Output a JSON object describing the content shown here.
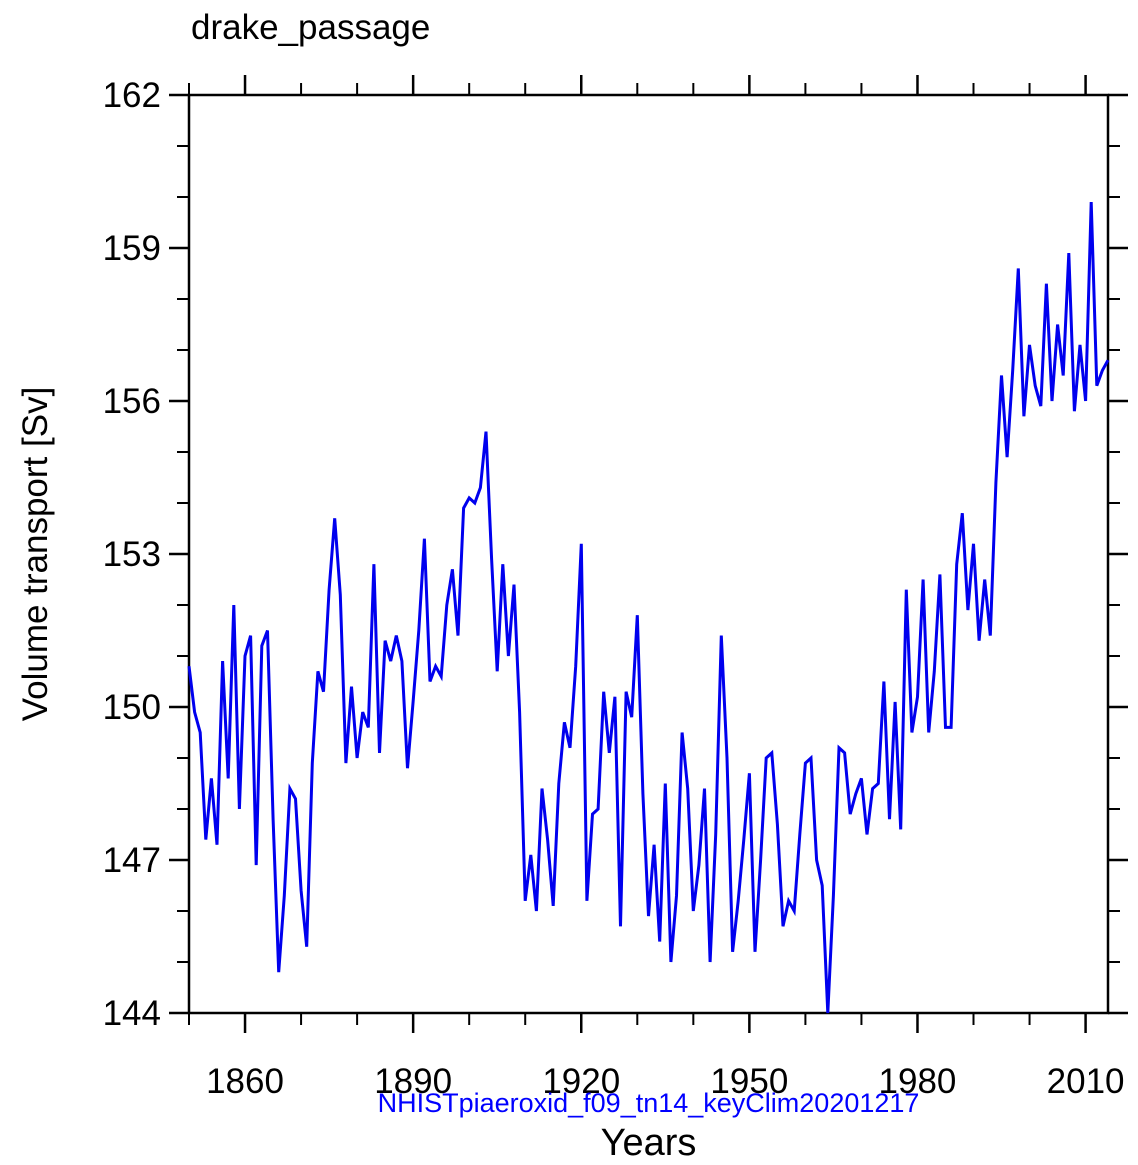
{
  "chart_data": {
    "type": "line",
    "title": "drake_passage",
    "subtitle": "NHISTpiaeroxid_f09_tn14_keyClim20201217",
    "xlabel": "Years",
    "ylabel": "Volume transport [Sv]",
    "xlim": [
      1850,
      2014
    ],
    "ylim": [
      144,
      162
    ],
    "x_start": 1850,
    "x_step": 1,
    "x_major_ticks": [
      1860,
      1890,
      1920,
      1950,
      1980,
      2010
    ],
    "x_minor_ticks": [
      1850,
      1870,
      1880,
      1900,
      1910,
      1930,
      1940,
      1960,
      1970,
      1990,
      2000
    ],
    "y_major_ticks": [
      144,
      147,
      150,
      153,
      156,
      159,
      162
    ],
    "y_minor_ticks": [
      145,
      146,
      148,
      149,
      151,
      152,
      154,
      155,
      157,
      158,
      160,
      161
    ],
    "grid": false,
    "legend": null,
    "line_color": "#0000ee",
    "subtitle_color": "#0000ff",
    "axis_color": "#000000",
    "series": [
      {
        "name": "drake_passage volume transport",
        "values": [
          150.8,
          149.9,
          149.5,
          147.4,
          148.6,
          147.3,
          150.9,
          148.6,
          152.0,
          148.0,
          151.0,
          151.4,
          146.9,
          151.2,
          151.5,
          147.8,
          144.8,
          146.3,
          148.4,
          148.2,
          146.4,
          145.3,
          148.9,
          150.7,
          150.3,
          152.3,
          153.7,
          152.2,
          148.9,
          150.4,
          149.0,
          149.9,
          149.6,
          152.8,
          149.1,
          151.3,
          150.9,
          151.4,
          150.9,
          148.8,
          150.1,
          151.5,
          153.3,
          150.5,
          150.8,
          150.6,
          152.0,
          152.7,
          151.4,
          153.9,
          154.1,
          154.0,
          154.3,
          155.4,
          152.9,
          150.7,
          152.8,
          151.0,
          152.4,
          149.9,
          146.2,
          147.1,
          146.0,
          148.4,
          147.4,
          146.1,
          148.5,
          149.7,
          149.2,
          150.8,
          153.2,
          146.2,
          147.9,
          148.0,
          150.3,
          149.1,
          150.2,
          145.7,
          150.3,
          149.8,
          151.8,
          148.3,
          145.9,
          147.3,
          145.4,
          148.5,
          145.0,
          146.3,
          149.5,
          148.4,
          146.0,
          146.9,
          148.4,
          145.0,
          147.5,
          151.4,
          149.0,
          145.2,
          146.2,
          147.4,
          148.7,
          145.2,
          147.0,
          149.0,
          149.1,
          147.7,
          145.7,
          146.2,
          146.0,
          147.5,
          148.9,
          149.0,
          147.0,
          146.5,
          144.0,
          146.3,
          149.2,
          149.1,
          147.9,
          148.3,
          148.6,
          147.5,
          148.4,
          148.5,
          150.5,
          147.8,
          150.1,
          147.6,
          152.3,
          149.5,
          150.2,
          152.5,
          149.5,
          150.7,
          152.6,
          149.6,
          149.6,
          152.8,
          153.8,
          151.9,
          153.2,
          151.3,
          152.5,
          151.4,
          154.4,
          156.5,
          154.9,
          156.6,
          158.6,
          155.7,
          157.1,
          156.3,
          155.9,
          158.3,
          156.0,
          157.5,
          156.5,
          158.9,
          155.8,
          157.1,
          156.0,
          159.9,
          156.3,
          156.6,
          156.8
        ]
      }
    ]
  }
}
